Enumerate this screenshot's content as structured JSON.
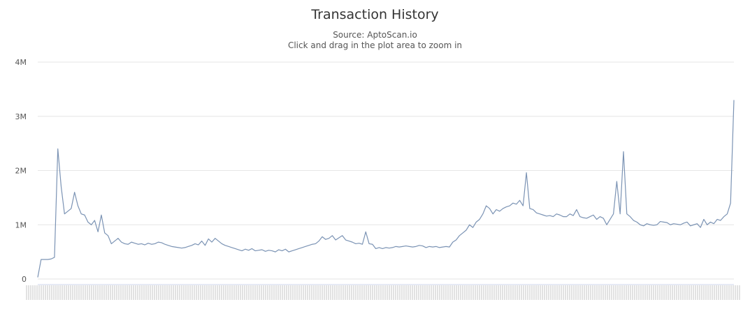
{
  "chart_data": {
    "type": "line",
    "title": "Transaction History",
    "subtitle": "Source: AptoScan.io",
    "hint": "Click and drag in the plot area to zoom in",
    "xlabel": "",
    "ylabel": "",
    "ylim": [
      0,
      4000000
    ],
    "y_ticks": [
      0,
      1000000,
      2000000,
      3000000,
      4000000
    ],
    "y_tick_labels": [
      "0",
      "1M",
      "2M",
      "3M",
      "4M"
    ],
    "grid": true,
    "legend": "none",
    "x_labels_legible": false,
    "series": [
      {
        "color": "#7b93b4",
        "values": [
          30000,
          360000,
          360000,
          360000,
          370000,
          400000,
          2400000,
          1700000,
          1200000,
          1250000,
          1300000,
          1600000,
          1350000,
          1200000,
          1180000,
          1050000,
          1000000,
          1080000,
          870000,
          1180000,
          850000,
          800000,
          650000,
          700000,
          750000,
          680000,
          650000,
          640000,
          680000,
          660000,
          640000,
          650000,
          630000,
          660000,
          640000,
          650000,
          680000,
          670000,
          640000,
          620000,
          600000,
          590000,
          580000,
          570000,
          580000,
          600000,
          620000,
          650000,
          630000,
          700000,
          620000,
          740000,
          680000,
          750000,
          700000,
          650000,
          620000,
          600000,
          580000,
          560000,
          540000,
          520000,
          550000,
          530000,
          560000,
          520000,
          530000,
          540000,
          510000,
          530000,
          520000,
          500000,
          540000,
          520000,
          550000,
          500000,
          520000,
          540000,
          560000,
          580000,
          600000,
          620000,
          640000,
          650000,
          700000,
          780000,
          730000,
          750000,
          800000,
          720000,
          760000,
          800000,
          720000,
          700000,
          680000,
          650000,
          660000,
          640000,
          870000,
          650000,
          640000,
          560000,
          580000,
          560000,
          580000,
          570000,
          580000,
          600000,
          590000,
          600000,
          610000,
          600000,
          590000,
          600000,
          620000,
          610000,
          580000,
          600000,
          590000,
          600000,
          580000,
          590000,
          600000,
          590000,
          680000,
          720000,
          800000,
          850000,
          900000,
          1000000,
          950000,
          1050000,
          1100000,
          1200000,
          1350000,
          1300000,
          1200000,
          1280000,
          1250000,
          1300000,
          1330000,
          1350000,
          1400000,
          1380000,
          1450000,
          1350000,
          1960000,
          1300000,
          1280000,
          1220000,
          1200000,
          1180000,
          1160000,
          1170000,
          1150000,
          1200000,
          1180000,
          1150000,
          1150000,
          1200000,
          1170000,
          1280000,
          1150000,
          1130000,
          1120000,
          1150000,
          1180000,
          1100000,
          1150000,
          1120000,
          1000000,
          1100000,
          1200000,
          1800000,
          1200000,
          2350000,
          1200000,
          1150000,
          1080000,
          1050000,
          1000000,
          980000,
          1020000,
          1000000,
          990000,
          1000000,
          1060000,
          1050000,
          1040000,
          1000000,
          1020000,
          1010000,
          1000000,
          1030000,
          1050000,
          980000,
          1000000,
          1020000,
          950000,
          1100000,
          1000000,
          1050000,
          1020000,
          1100000,
          1080000,
          1150000,
          1200000,
          1400000,
          3300000
        ]
      }
    ]
  }
}
